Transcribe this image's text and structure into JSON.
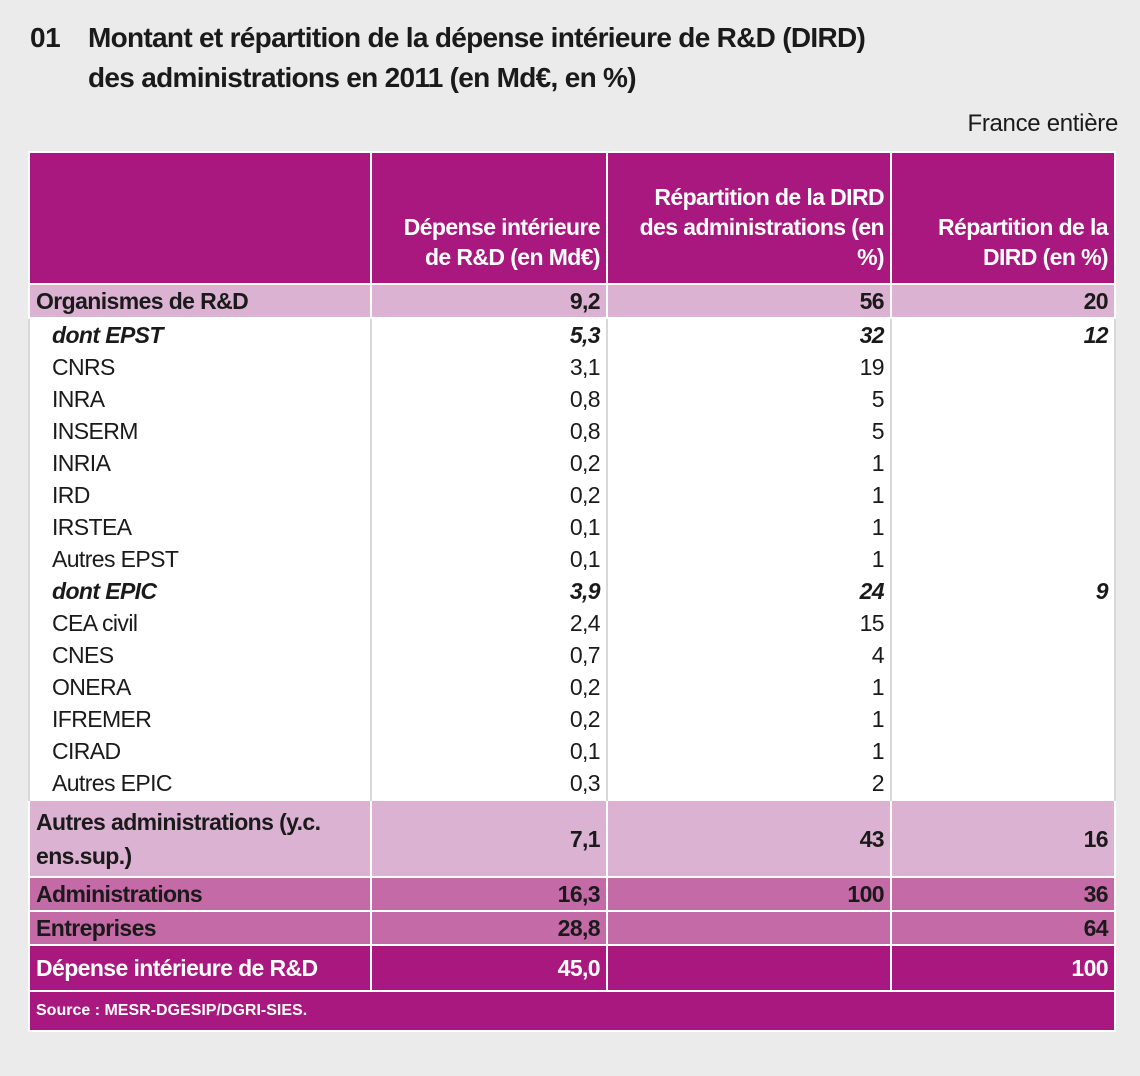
{
  "header": {
    "number": "01",
    "title": [
      "Montant et répartition de la dépense intérieure de R&D (DIRD)",
      "des administrations en 2011 (en Md€, en %)"
    ],
    "scope": "France entière"
  },
  "table": {
    "columns": [
      "Dépense intérieure de R&D (en Md€)",
      "Répartition de la DIRD des administrations (en %)",
      "Répartition de la DIRD (en %)"
    ],
    "rows": [
      [
        "Organismes de R&D",
        "9,2",
        "56",
        "20"
      ],
      [
        "dont EPST",
        "5,3",
        "32",
        "12"
      ],
      [
        "CNRS",
        "3,1",
        "19",
        null
      ],
      [
        "INRA",
        "0,8",
        "5",
        null
      ],
      [
        "INSERM",
        "0,8",
        "5",
        null
      ],
      [
        "INRIA",
        "0,2",
        "1",
        null
      ],
      [
        "IRD",
        "0,2",
        "1",
        null
      ],
      [
        "IRSTEA",
        "0,1",
        "1",
        null
      ],
      [
        "Autres EPST",
        "0,1",
        "1",
        null
      ],
      [
        "dont EPIC",
        "3,9",
        "24",
        "9"
      ],
      [
        "CEA civil",
        "2,4",
        "15",
        null
      ],
      [
        "CNES",
        "0,7",
        "4",
        null
      ],
      [
        "ONERA",
        "0,2",
        "1",
        null
      ],
      [
        "IFREMER",
        "0,2",
        "1",
        null
      ],
      [
        "CIRAD",
        "0,1",
        "1",
        null
      ],
      [
        "Autres EPIC",
        "0,3",
        "2",
        null
      ],
      [
        "Autres administrations (y.c. ens.sup.)",
        "7,1",
        "43",
        "16"
      ],
      [
        "Administrations",
        "16,3",
        "100",
        "36"
      ],
      [
        "Entreprises",
        "28,8",
        null,
        "64"
      ],
      [
        "Dépense intérieure de R&D",
        "45,0",
        null,
        "100"
      ]
    ],
    "source": "Source : MESR-DGESIP/DGRI-SIES."
  }
}
